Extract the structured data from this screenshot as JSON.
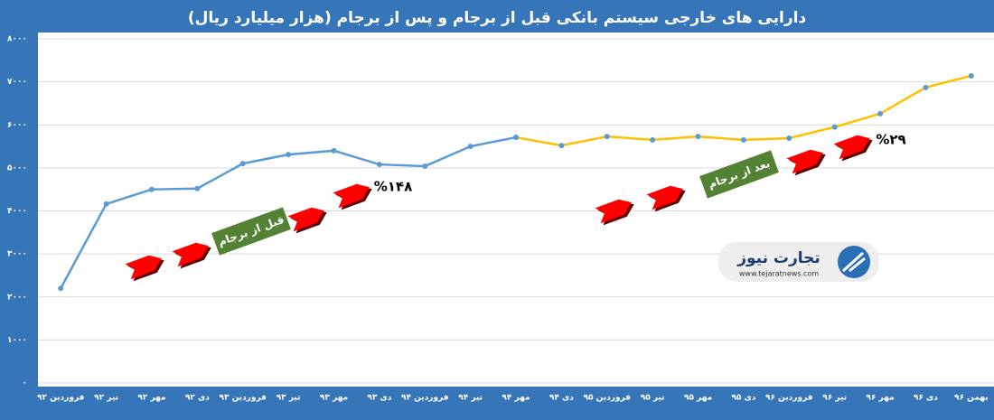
{
  "chart_data": {
    "type": "line",
    "title": "دارایی های خارجی سیستم بانکی قبل از برجام و پس از برجام (هزار میلیارد ریال)",
    "categories": [
      "فروردین ۹۲",
      "تیر ۹۲",
      "مهر ۹۲",
      "دی ۹۲",
      "فروردین ۹۳",
      "تیر ۹۳",
      "مهر ۹۳",
      "دی ۹۳",
      "فروردین ۹۴",
      "تیر ۹۴",
      "مهر ۹۴",
      "دی ۹۴",
      "فروردین ۹۵",
      "تیر ۹۵",
      "مهر ۹۵",
      "دی ۹۵",
      "فروردین ۹۶",
      "تیر ۹۶",
      "مهر ۹۶",
      "دی ۹۶",
      "بهمن ۹۶"
    ],
    "series": [
      {
        "color": "#5b9bd5",
        "values": [
          2200,
          4160,
          4500,
          4520,
          5100,
          5310,
          5400,
          5080,
          5040,
          5500,
          5710,
          null,
          null,
          null,
          null,
          null,
          null,
          null,
          null,
          null,
          null
        ]
      },
      {
        "color": "#ffc000",
        "values": [
          null,
          null,
          null,
          null,
          null,
          null,
          null,
          null,
          null,
          null,
          5710,
          5520,
          5730,
          5650,
          5730,
          5650,
          5690,
          5950,
          6260,
          6870,
          7140
        ]
      }
    ],
    "ylim": [
      0,
      8000
    ],
    "yticks": [
      {
        "value": 0,
        "label": "۰"
      },
      {
        "value": 1000,
        "label": "۱۰۰۰"
      },
      {
        "value": 2000,
        "label": "۲۰۰۰"
      },
      {
        "value": 3000,
        "label": "۳۰۰۰"
      },
      {
        "value": 4000,
        "label": "۴۰۰۰"
      },
      {
        "value": 5000,
        "label": "۵۰۰۰"
      },
      {
        "value": 6000,
        "label": "۶۰۰۰"
      },
      {
        "value": 7000,
        "label": "۷۰۰۰"
      },
      {
        "value": 8000,
        "label": "۸۰۰۰"
      }
    ],
    "grid": true,
    "annotations": [
      "%۱۴۸",
      "قبل از برجام",
      "%۲۹",
      "بعد از برجام"
    ],
    "logo": {
      "name": "تجارت نیوز",
      "url": "www.tejaratnews.com"
    }
  }
}
